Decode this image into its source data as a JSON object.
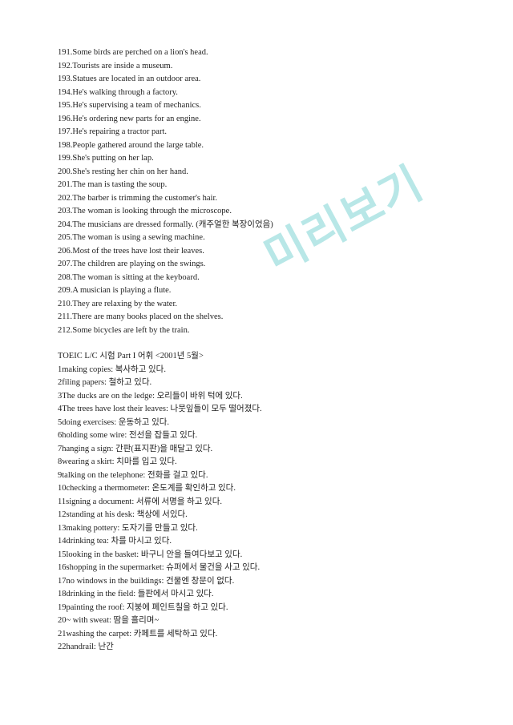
{
  "watermark": "미리보기",
  "section1": [
    "191.Some birds are perched on a lion's head.",
    "192.Tourists are inside a museum.",
    "193.Statues are located in an outdoor area.",
    "194.He's walking through a factory.",
    "195.He's supervising a team of mechanics.",
    "196.He's ordering new parts for an engine.",
    "197.He's repairing a tractor part.",
    "198.People gathered around the large table.",
    "199.She's putting on her lap.",
    "200.She's resting her chin on her hand.",
    "201.The man is tasting the soup.",
    "202.The barber is trimming the customer's hair.",
    "203.The woman is looking through the microscope.",
    "204.The musicians are dressed formally. (캐주얼한 복장이었음)",
    "205.The woman is using a sewing machine.",
    "206.Most of the trees have lost their leaves.",
    "207.The children are playing on the swings.",
    "208.The woman is sitting at the keyboard.",
    "209.A musician is playing a flute.",
    "210.They are relaxing by the water.",
    "211.There are many books placed on the shelves.",
    "212.Some bicycles are left by the train."
  ],
  "section2_title": "TOEIC L/C 시험 Part I 어휘 <2001년 5월>",
  "section2": [
    "1making copies: 복사하고 있다.",
    "2filing papers: 철하고 있다.",
    "3The ducks are on the ledge: 오리들이 바위 턱에 있다.",
    "4The trees have lost their leaves: 나뭇잎들이 모두 떨어졌다.",
    "5doing exercises: 운동하고 있다.",
    "6holding some wire: 전선을 잡들고 있다.",
    "7hanging a sign: 간판(표지판)을 매달고 있다.",
    "8wearing a skirt: 치마를 입고 있다.",
    "9talking on the telephone: 전화를 걸고 있다.",
    "10checking a thermometer: 온도계를 확인하고 있다.",
    "11signing a document: 서류에 서명을 하고 있다.",
    "12standing at his desk: 책상에 서있다.",
    "13making pottery: 도자기를 만들고 있다.",
    "14drinking tea: 차를 마시고 있다.",
    "15looking in the basket: 바구니 안을 들여다보고 있다.",
    "16shopping in the supermarket: 슈퍼에서 물건을 사고 있다.",
    "17no windows in the buildings: 건물엔 창문이 없다.",
    "18drinking in the field: 들판에서 마시고 있다.",
    "19painting the roof: 지붕에 페인트칠을 하고 있다.",
    "20~ with sweat: 땀을 흘리며~",
    "21washing the carpet: 카페트를 세탁하고 있다.",
    "22handrail: 난간"
  ]
}
